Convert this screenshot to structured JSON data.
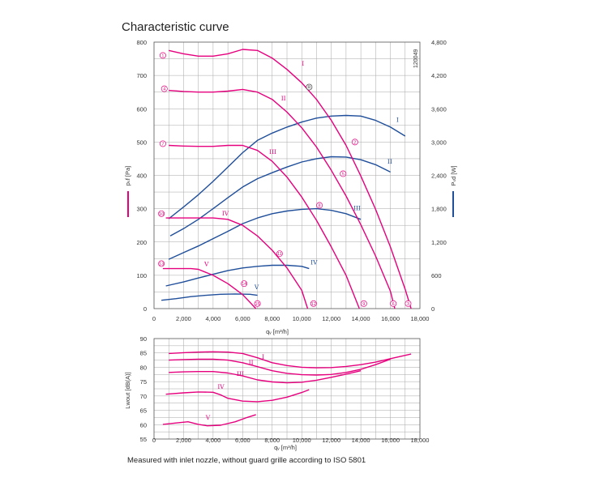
{
  "title": "Characteristic curve",
  "footnote": "Measured with inlet nozzle, without guard grille according to ISO 5801",
  "code": "120049",
  "colors": {
    "pressure": "#e6007e",
    "power": "#1f4e9a",
    "grid": "#a6a6a6",
    "axis": "#555555"
  },
  "chart_data": [
    {
      "type": "line",
      "name": "upper",
      "xlabel": "qᵥ [m³/h]",
      "ylabel_left": "pₛf [Pa]",
      "ylabel_right": "Pₛd [W]",
      "xlim": [
        0,
        18000
      ],
      "ylim_left": [
        0,
        800
      ],
      "ylim_right": [
        0,
        4800
      ],
      "grid": true,
      "x_ticks": [
        "0",
        "2,000",
        "4,000",
        "6,000",
        "8,000",
        "10,000",
        "12,000",
        "14,000",
        "16,000",
        "18,000"
      ],
      "x_tick_values": [
        0,
        2000,
        4000,
        6000,
        8000,
        10000,
        12000,
        14000,
        16000,
        18000
      ],
      "y_left_ticks": [
        "0",
        "100",
        "200",
        "300",
        "400",
        "500",
        "600",
        "700",
        "800"
      ],
      "y_left_tick_values": [
        0,
        100,
        200,
        300,
        400,
        500,
        600,
        700,
        800
      ],
      "y_right_ticks": [
        "0",
        "600",
        "1,200",
        "1,800",
        "2,400",
        "3,000",
        "3,600",
        "4,200",
        "4,800"
      ],
      "y_right_tick_values": [
        0,
        600,
        1200,
        1800,
        2400,
        3000,
        3600,
        4200,
        4800
      ],
      "pressure_series": [
        {
          "name": "I",
          "label_at": [
            10000,
            730
          ],
          "points": [
            [
              1000,
              775
            ],
            [
              2000,
              765
            ],
            [
              3000,
              758
            ],
            [
              4000,
              758
            ],
            [
              5000,
              765
            ],
            [
              6000,
              778
            ],
            [
              7000,
              775
            ],
            [
              8000,
              752
            ],
            [
              9000,
              718
            ],
            [
              10000,
              678
            ],
            [
              11000,
              628
            ],
            [
              12000,
              565
            ],
            [
              13000,
              490
            ],
            [
              14000,
              398
            ],
            [
              15000,
              298
            ],
            [
              16000,
              185
            ],
            [
              17000,
              58
            ],
            [
              17400,
              0
            ]
          ]
        },
        {
          "name": "II",
          "label_at": [
            8600,
            625
          ],
          "points": [
            [
              1000,
              655
            ],
            [
              2000,
              652
            ],
            [
              3000,
              650
            ],
            [
              4000,
              650
            ],
            [
              5000,
              653
            ],
            [
              6000,
              658
            ],
            [
              7000,
              650
            ],
            [
              8000,
              628
            ],
            [
              9000,
              590
            ],
            [
              10000,
              543
            ],
            [
              11000,
              485
            ],
            [
              12000,
              415
            ],
            [
              13000,
              338
            ],
            [
              14000,
              252
            ],
            [
              15000,
              158
            ],
            [
              16000,
              52
            ],
            [
              16300,
              0
            ]
          ]
        },
        {
          "name": "III",
          "label_at": [
            7800,
            465
          ],
          "points": [
            [
              1000,
              490
            ],
            [
              2000,
              488
            ],
            [
              3000,
              487
            ],
            [
              4000,
              487
            ],
            [
              5000,
              490
            ],
            [
              6000,
              490
            ],
            [
              7000,
              475
            ],
            [
              8000,
              442
            ],
            [
              9000,
              395
            ],
            [
              10000,
              335
            ],
            [
              11000,
              265
            ],
            [
              12000,
              185
            ],
            [
              13000,
              100
            ],
            [
              13900,
              0
            ]
          ]
        },
        {
          "name": "IV",
          "label_at": [
            4600,
            280
          ],
          "points": [
            [
              800,
              272
            ],
            [
              2000,
              272
            ],
            [
              3000,
              272
            ],
            [
              4000,
              272
            ],
            [
              5000,
              268
            ],
            [
              6000,
              250
            ],
            [
              7000,
              218
            ],
            [
              8000,
              175
            ],
            [
              9000,
              122
            ],
            [
              10000,
              55
            ],
            [
              10400,
              0
            ]
          ]
        },
        {
          "name": "V",
          "label_at": [
            3400,
            128
          ],
          "points": [
            [
              600,
              120
            ],
            [
              1500,
              120
            ],
            [
              2500,
              120
            ],
            [
              3000,
              118
            ],
            [
              4000,
              100
            ],
            [
              5000,
              75
            ],
            [
              6000,
              42
            ],
            [
              6900,
              0
            ]
          ]
        }
      ],
      "power_series": [
        {
          "name": "I",
          "label_at": [
            16400,
            560
          ],
          "points": [
            [
              1000,
              270
            ],
            [
              2000,
              305
            ],
            [
              3000,
              342
            ],
            [
              4000,
              382
            ],
            [
              5000,
              425
            ],
            [
              6000,
              468
            ],
            [
              7000,
              505
            ],
            [
              8000,
              527
            ],
            [
              9000,
              545
            ],
            [
              10000,
              560
            ],
            [
              11000,
              572
            ],
            [
              12000,
              578
            ],
            [
              13000,
              580
            ],
            [
              14000,
              578
            ],
            [
              15000,
              565
            ],
            [
              16000,
              545
            ],
            [
              17000,
              518
            ]
          ]
        },
        {
          "name": "II",
          "label_at": [
            15800,
            435
          ],
          "points": [
            [
              1100,
              218
            ],
            [
              2000,
              240
            ],
            [
              3000,
              268
            ],
            [
              4000,
              300
            ],
            [
              5000,
              333
            ],
            [
              6000,
              365
            ],
            [
              7000,
              390
            ],
            [
              8000,
              408
            ],
            [
              9000,
              425
            ],
            [
              10000,
              440
            ],
            [
              11000,
              450
            ],
            [
              12000,
              456
            ],
            [
              13000,
              455
            ],
            [
              14000,
              447
            ],
            [
              15000,
              432
            ],
            [
              16000,
              410
            ]
          ]
        },
        {
          "name": "III",
          "label_at": [
            13500,
            295
          ],
          "points": [
            [
              1000,
              148
            ],
            [
              2000,
              168
            ],
            [
              3000,
              188
            ],
            [
              4000,
              210
            ],
            [
              5000,
              232
            ],
            [
              6000,
              255
            ],
            [
              7000,
              272
            ],
            [
              8000,
              285
            ],
            [
              9000,
              293
            ],
            [
              10000,
              298
            ],
            [
              11000,
              300
            ],
            [
              12000,
              295
            ],
            [
              13000,
              285
            ],
            [
              14000,
              268
            ]
          ]
        },
        {
          "name": "IV",
          "label_at": [
            10600,
            132
          ],
          "points": [
            [
              800,
              68
            ],
            [
              2000,
              80
            ],
            [
              3000,
              92
            ],
            [
              4000,
              103
            ],
            [
              5000,
              114
            ],
            [
              6000,
              122
            ],
            [
              7000,
              127
            ],
            [
              8000,
              130
            ],
            [
              9000,
              130
            ],
            [
              10000,
              127
            ],
            [
              10500,
              120
            ]
          ]
        },
        {
          "name": "V",
          "label_at": [
            6800,
            58
          ],
          "points": [
            [
              500,
              25
            ],
            [
              1500,
              30
            ],
            [
              2500,
              36
            ],
            [
              3500,
              40
            ],
            [
              4500,
              43
            ],
            [
              5500,
              44
            ],
            [
              6500,
              43
            ],
            [
              7000,
              40
            ]
          ]
        }
      ],
      "operating_point_markers": [
        {
          "label": "1",
          "x": 600,
          "y": 760
        },
        {
          "label": "4",
          "x": 700,
          "y": 660
        },
        {
          "label": "7",
          "x": 600,
          "y": 495
        },
        {
          "label": "10",
          "x": 500,
          "y": 285
        },
        {
          "label": "13",
          "x": 500,
          "y": 135
        },
        {
          "label": "R",
          "x": 10500,
          "y": 665
        },
        {
          "label": "2",
          "x": 13600,
          "y": 500
        },
        {
          "label": "5",
          "x": 12800,
          "y": 405
        },
        {
          "label": "8",
          "x": 11200,
          "y": 310
        },
        {
          "label": "11",
          "x": 8500,
          "y": 165
        },
        {
          "label": "14",
          "x": 6100,
          "y": 75
        },
        {
          "label": "3",
          "x": 17200,
          "y": 15
        },
        {
          "label": "6",
          "x": 16200,
          "y": 15
        },
        {
          "label": "9",
          "x": 14200,
          "y": 15
        },
        {
          "label": "12",
          "x": 10800,
          "y": 15
        },
        {
          "label": "15",
          "x": 7000,
          "y": 15
        }
      ]
    },
    {
      "type": "line",
      "name": "lower",
      "xlabel": "qᵥ [m³/h]",
      "ylabel": "Lwout [dB(A)]",
      "xlim": [
        0,
        18000
      ],
      "ylim": [
        55,
        90
      ],
      "grid": true,
      "x_ticks": [
        "0",
        "2,000",
        "4,000",
        "6,000",
        "8,000",
        "10,000",
        "12,000",
        "14,000",
        "16,000",
        "18,000"
      ],
      "x_tick_values": [
        0,
        2000,
        4000,
        6000,
        8000,
        10000,
        12000,
        14000,
        16000,
        18000
      ],
      "y_ticks": [
        "55",
        "60",
        "65",
        "70",
        "75",
        "80",
        "85",
        "90"
      ],
      "y_tick_values": [
        55,
        60,
        65,
        70,
        75,
        80,
        85,
        90
      ],
      "sound_series": [
        {
          "name": "I",
          "label_at": [
            7300,
            83
          ],
          "points": [
            [
              1000,
              84.8
            ],
            [
              2000,
              85.1
            ],
            [
              3000,
              85.3
            ],
            [
              4000,
              85.4
            ],
            [
              5000,
              85.3
            ],
            [
              6000,
              84.8
            ],
            [
              7000,
              83.3
            ],
            [
              8000,
              81.6
            ],
            [
              9000,
              80.6
            ],
            [
              10000,
              80.0
            ],
            [
              11000,
              79.8
            ],
            [
              12000,
              79.9
            ],
            [
              13000,
              80.3
            ],
            [
              14000,
              80.9
            ],
            [
              15000,
              81.8
            ],
            [
              16000,
              83.0
            ],
            [
              17400,
              84.6
            ]
          ]
        },
        {
          "name": "II",
          "label_at": [
            6400,
            81
          ],
          "points": [
            [
              1000,
              82.5
            ],
            [
              2000,
              82.7
            ],
            [
              3000,
              82.8
            ],
            [
              4000,
              82.8
            ],
            [
              5000,
              82.5
            ],
            [
              6000,
              81.6
            ],
            [
              7000,
              80.2
            ],
            [
              8000,
              78.8
            ],
            [
              9000,
              77.9
            ],
            [
              10000,
              77.4
            ],
            [
              11000,
              77.3
            ],
            [
              12000,
              77.5
            ],
            [
              13000,
              78.2
            ],
            [
              14000,
              79.3
            ],
            [
              15000,
              80.9
            ],
            [
              16000,
              82.8
            ]
          ]
        },
        {
          "name": "III",
          "label_at": [
            5600,
            77
          ],
          "points": [
            [
              1000,
              78.2
            ],
            [
              2000,
              78.4
            ],
            [
              3000,
              78.5
            ],
            [
              4000,
              78.5
            ],
            [
              5000,
              78.0
            ],
            [
              6000,
              77.0
            ],
            [
              7000,
              75.6
            ],
            [
              8000,
              74.9
            ],
            [
              9000,
              74.6
            ],
            [
              10000,
              74.8
            ],
            [
              11000,
              75.5
            ],
            [
              12000,
              76.5
            ],
            [
              13000,
              77.6
            ],
            [
              14000,
              78.8
            ]
          ]
        },
        {
          "name": "IV",
          "label_at": [
            4300,
            72.5
          ],
          "points": [
            [
              800,
              70.6
            ],
            [
              2000,
              71.1
            ],
            [
              3000,
              71.4
            ],
            [
              4000,
              71.3
            ],
            [
              4500,
              70.4
            ],
            [
              5000,
              69.2
            ],
            [
              6000,
              68.2
            ],
            [
              7000,
              68.0
            ],
            [
              8000,
              68.5
            ],
            [
              9000,
              69.6
            ],
            [
              10000,
              71.2
            ],
            [
              10500,
              72.2
            ]
          ]
        },
        {
          "name": "V",
          "label_at": [
            3500,
            61.8
          ],
          "points": [
            [
              600,
              60.1
            ],
            [
              1500,
              60.6
            ],
            [
              2300,
              61.0
            ],
            [
              3000,
              60.1
            ],
            [
              3600,
              59.6
            ],
            [
              4500,
              59.8
            ],
            [
              5500,
              61.0
            ],
            [
              6300,
              62.5
            ],
            [
              6900,
              63.5
            ]
          ]
        }
      ]
    }
  ]
}
